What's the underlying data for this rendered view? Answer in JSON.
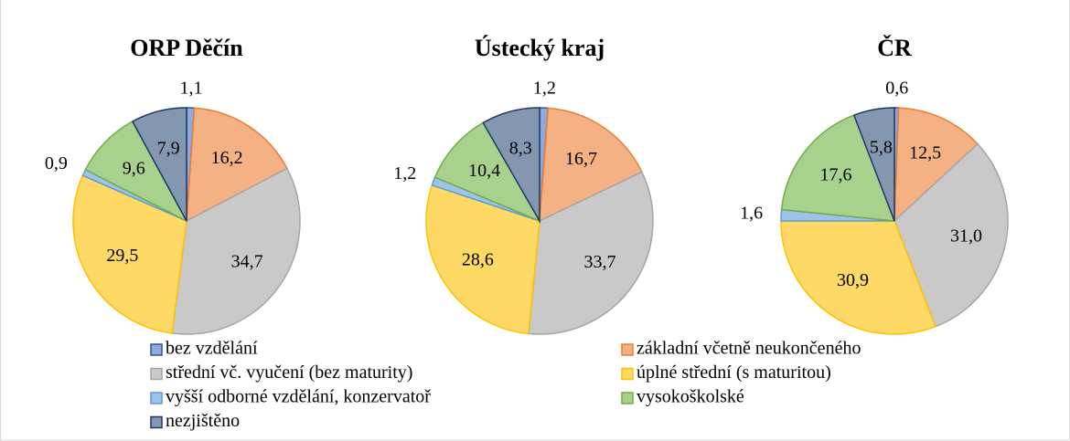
{
  "chart_data": {
    "type": "pie",
    "categories": [
      "bez vzdělání",
      "základní včetně neukončeného",
      "střední vč. vyučení (bez maturity)",
      "úplné střední (s maturitou)",
      "vyšší odborné vzdělání, konzervatoř",
      "vysokoškolské",
      "nezjištěno"
    ],
    "colors": [
      "#8faadc",
      "#f4b183",
      "#c9c9c9",
      "#ffd966",
      "#9dc3e6",
      "#a9d18e",
      "#8497b0"
    ],
    "edge_colors": [
      "#2f5597",
      "#ed7d31",
      "#a5a5a5",
      "#ffc000",
      "#5b9bd5",
      "#70ad47",
      "#203864"
    ],
    "series": [
      {
        "name": "ORP Děčín",
        "values": [
          1.1,
          16.2,
          34.7,
          29.5,
          0.9,
          9.6,
          7.9
        ],
        "value_labels": [
          "1,1",
          "16,2",
          "34,7",
          "29,5",
          "0,9",
          "9,6",
          "7,9"
        ]
      },
      {
        "name": "Ústecký kraj",
        "values": [
          1.2,
          16.7,
          33.7,
          28.6,
          1.2,
          10.4,
          8.3
        ],
        "value_labels": [
          "1,2",
          "16,7",
          "33,7",
          "28,6",
          "1,2",
          "10,4",
          "8,3"
        ]
      },
      {
        "name": "ČR",
        "values": [
          0.6,
          12.5,
          31.0,
          30.9,
          1.6,
          17.6,
          5.8
        ],
        "value_labels": [
          "0,6",
          "12,5",
          "31,0",
          "30,9",
          "1,6",
          "17,6",
          "5,8"
        ]
      }
    ]
  }
}
